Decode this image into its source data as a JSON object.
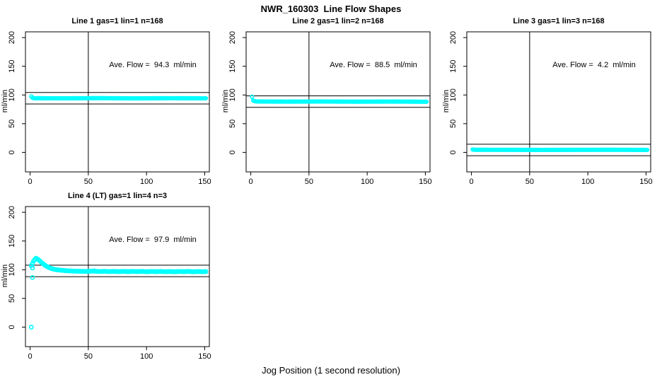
{
  "page": {
    "title": "NWR_160303  Line Flow Shapes",
    "xlabel": "Jog Position (1 second resolution)"
  },
  "colors": {
    "data": "#00FFFF",
    "axis": "#000000",
    "background": "#FFFFFF"
  },
  "chart_data": [
    {
      "type": "scatter",
      "title": "Line 1 gas=1 lin=1 n=168",
      "annotation": "Ave. Flow =  94.3  ml/min",
      "ave_flow_ml_min": 94.3,
      "n": 168,
      "ylabel": "ml/min",
      "xticks": [
        0,
        50,
        100,
        150
      ],
      "yticks": [
        0,
        50,
        100,
        150,
        200
      ],
      "xlim": [
        -4,
        154
      ],
      "ylim": [
        -34,
        210
      ],
      "vline_x": 50,
      "hlines": [
        104.3,
        84.3
      ],
      "marker_radius": 2.3,
      "trace_breakpoints": [
        [
          1,
          97.5
        ],
        [
          2,
          95.0
        ],
        [
          4,
          94.3
        ],
        [
          30,
          94.2
        ],
        [
          60,
          94.5
        ],
        [
          90,
          94.1
        ],
        [
          120,
          94.4
        ],
        [
          151,
          94.2
        ]
      ],
      "extra_points": []
    },
    {
      "type": "scatter",
      "title": "Line 2 gas=1 lin=2 n=168",
      "annotation": "Ave. Flow =  88.5  ml/min",
      "ave_flow_ml_min": 88.5,
      "n": 168,
      "ylabel": "ml/min",
      "xticks": [
        0,
        50,
        100,
        150
      ],
      "yticks": [
        0,
        50,
        100,
        150,
        200
      ],
      "xlim": [
        -4,
        154
      ],
      "ylim": [
        -34,
        210
      ],
      "vline_x": 50,
      "hlines": [
        98.5,
        78.5
      ],
      "marker_radius": 2.3,
      "trace_breakpoints": [
        [
          1,
          97.0
        ],
        [
          2,
          90.5
        ],
        [
          3,
          89.3
        ],
        [
          6,
          88.6
        ],
        [
          30,
          88.4
        ],
        [
          60,
          88.6
        ],
        [
          90,
          88.3
        ],
        [
          120,
          88.5
        ],
        [
          151,
          88.2
        ]
      ],
      "extra_points": []
    },
    {
      "type": "scatter",
      "title": "Line 3 gas=1 lin=3 n=168",
      "annotation": "Ave. Flow =  4.2  ml/min",
      "ave_flow_ml_min": 4.2,
      "n": 168,
      "ylabel": "ml/min",
      "xticks": [
        0,
        50,
        100,
        150
      ],
      "yticks": [
        0,
        50,
        100,
        150,
        200
      ],
      "xlim": [
        -4,
        154
      ],
      "ylim": [
        -34,
        210
      ],
      "vline_x": 50,
      "hlines": [
        14.2,
        -5.8
      ],
      "marker_radius": 2.3,
      "trace_breakpoints": [
        [
          1,
          5.0
        ],
        [
          3,
          4.5
        ],
        [
          60,
          4.3
        ],
        [
          120,
          4.5
        ],
        [
          151,
          4.3
        ]
      ],
      "extra_points": []
    },
    {
      "type": "scatter",
      "title": "Line 4 (LT) gas=1 lin=4 n=3",
      "annotation": "Ave. Flow =  97.9  ml/min",
      "ave_flow_ml_min": 97.9,
      "n": 3,
      "ylabel": "ml/min",
      "xticks": [
        0,
        50,
        100,
        150
      ],
      "yticks": [
        0,
        50,
        100,
        150,
        200
      ],
      "xlim": [
        -4,
        154
      ],
      "ylim": [
        -34,
        210
      ],
      "vline_x": 50,
      "hlines": [
        107.9,
        87.9
      ],
      "marker_radius": 2.6,
      "trace_breakpoints": [
        [
          1,
          107
        ],
        [
          2,
          111
        ],
        [
          3,
          115
        ],
        [
          4,
          118
        ],
        [
          5,
          120
        ],
        [
          6,
          119
        ],
        [
          7,
          117.5
        ],
        [
          8,
          116
        ],
        [
          9,
          114
        ],
        [
          10,
          112
        ],
        [
          11,
          110.5
        ],
        [
          12,
          109
        ],
        [
          13,
          107.5
        ],
        [
          14,
          106
        ],
        [
          15,
          105
        ],
        [
          16,
          104
        ],
        [
          17,
          103
        ],
        [
          18,
          102.3
        ],
        [
          19,
          101.7
        ],
        [
          20,
          101
        ],
        [
          22,
          100.2
        ],
        [
          24,
          99.6
        ],
        [
          26,
          99.2
        ],
        [
          28,
          98.8
        ],
        [
          30,
          98.4
        ],
        [
          33,
          98.0
        ],
        [
          36,
          97.7
        ],
        [
          40,
          97.4
        ],
        [
          44,
          97.2
        ],
        [
          48,
          97.0
        ],
        [
          52,
          97.3
        ],
        [
          55,
          98.0
        ],
        [
          56,
          97.2
        ],
        [
          60,
          96.8
        ],
        [
          64,
          97.2
        ],
        [
          68,
          96.7
        ],
        [
          72,
          97.1
        ],
        [
          76,
          96.6
        ],
        [
          80,
          97.0
        ],
        [
          84,
          96.6
        ],
        [
          88,
          97.1
        ],
        [
          92,
          96.7
        ],
        [
          96,
          97.0
        ],
        [
          100,
          96.5
        ],
        [
          104,
          96.9
        ],
        [
          108,
          96.6
        ],
        [
          112,
          97.0
        ],
        [
          116,
          96.5
        ],
        [
          120,
          96.8
        ],
        [
          124,
          96.4
        ],
        [
          128,
          96.9
        ],
        [
          132,
          96.6
        ],
        [
          136,
          97.0
        ],
        [
          140,
          96.4
        ],
        [
          144,
          96.8
        ],
        [
          148,
          96.5
        ],
        [
          151,
          96.7
        ]
      ],
      "extra_points": [
        [
          1,
          0
        ],
        [
          2,
          86.5
        ],
        [
          2,
          103
        ]
      ]
    }
  ]
}
